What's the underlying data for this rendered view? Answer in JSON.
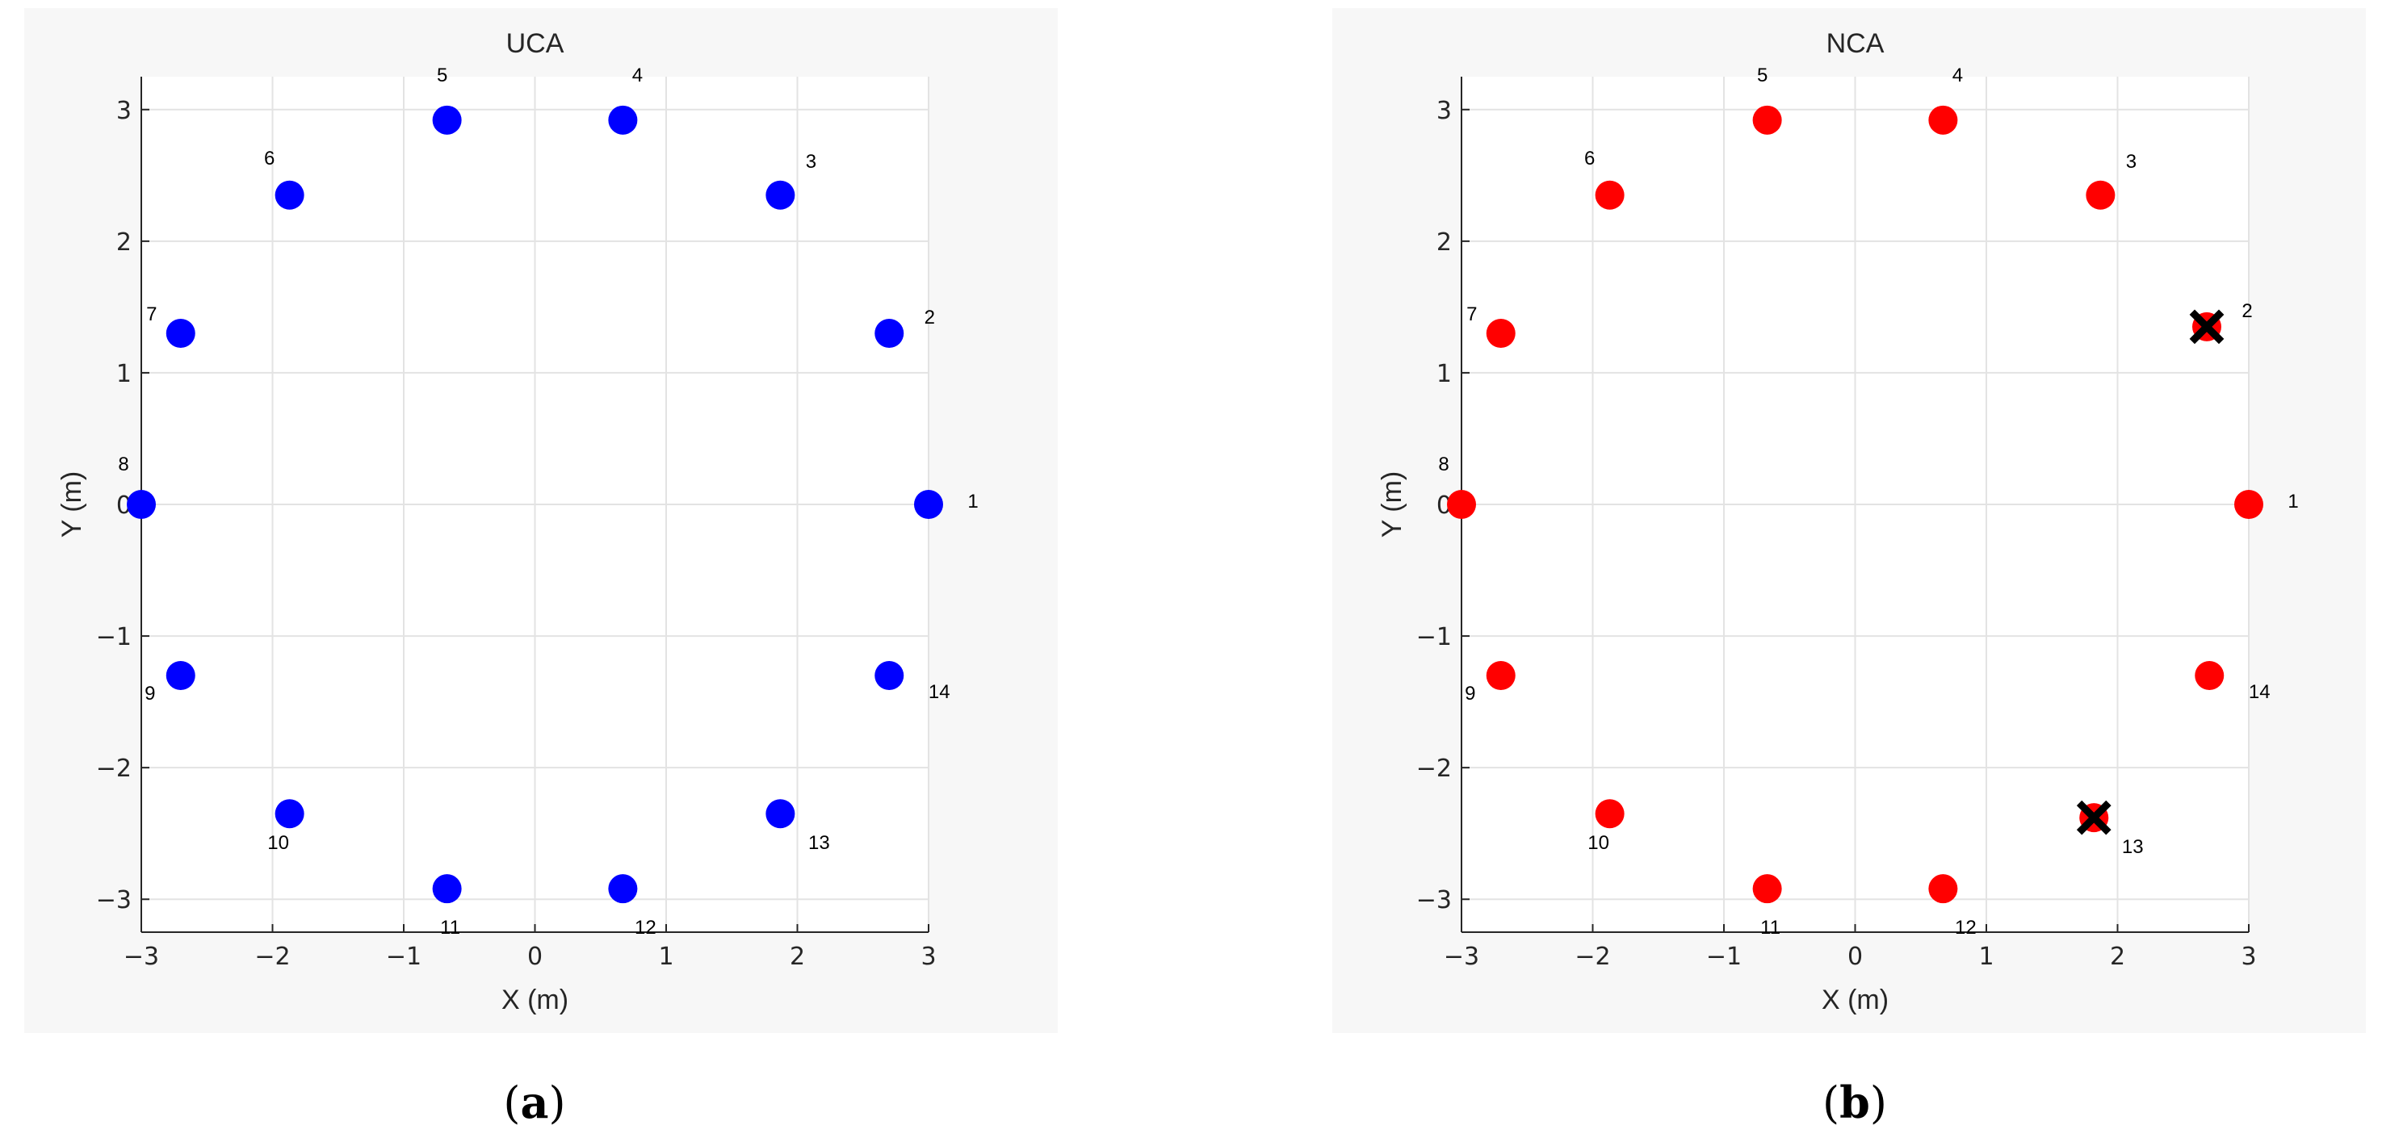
{
  "chart_data": [
    {
      "type": "scatter",
      "title": "UCA",
      "xlabel": "X (m)",
      "ylabel": "Y (m)",
      "xlim": [
        -3,
        3
      ],
      "ylim": [
        -3.25,
        3.25
      ],
      "xticks": [
        -3,
        -2,
        -1,
        0,
        1,
        2,
        3
      ],
      "xtick_labels": [
        "−3",
        "−2",
        "−1",
        "0",
        "1",
        "2",
        "3"
      ],
      "yticks": [
        -3,
        -2,
        -1,
        0,
        1,
        2,
        3
      ],
      "ytick_labels": [
        "−3",
        "−2",
        "−1",
        "0",
        "1",
        "2",
        "3"
      ],
      "grid": true,
      "marker_color": "#0000ff",
      "caption": "a",
      "points": [
        {
          "label": "1",
          "x": 3.0,
          "y": 0.0
        },
        {
          "label": "2",
          "x": 2.7,
          "y": 1.3
        },
        {
          "label": "3",
          "x": 1.87,
          "y": 2.35
        },
        {
          "label": "4",
          "x": 0.67,
          "y": 2.92
        },
        {
          "label": "5",
          "x": -0.67,
          "y": 2.92
        },
        {
          "label": "6",
          "x": -1.87,
          "y": 2.35
        },
        {
          "label": "7",
          "x": -2.7,
          "y": 1.3
        },
        {
          "label": "8",
          "x": -3.0,
          "y": 0.0
        },
        {
          "label": "9",
          "x": -2.7,
          "y": -1.3
        },
        {
          "label": "10",
          "x": -1.87,
          "y": -2.35
        },
        {
          "label": "11",
          "x": -0.67,
          "y": -2.92
        },
        {
          "label": "12",
          "x": 0.67,
          "y": -2.92
        },
        {
          "label": "13",
          "x": 1.87,
          "y": -2.35
        },
        {
          "label": "14",
          "x": 2.7,
          "y": -1.3
        }
      ],
      "failed": []
    },
    {
      "type": "scatter",
      "title": "NCA",
      "xlabel": "X (m)",
      "ylabel": "Y (m)",
      "xlim": [
        -3,
        3
      ],
      "ylim": [
        -3.25,
        3.25
      ],
      "xticks": [
        -3,
        -2,
        -1,
        0,
        1,
        2,
        3
      ],
      "xtick_labels": [
        "−3",
        "−2",
        "−1",
        "0",
        "1",
        "2",
        "3"
      ],
      "yticks": [
        -3,
        -2,
        -1,
        0,
        1,
        2,
        3
      ],
      "ytick_labels": [
        "−3",
        "−2",
        "−1",
        "0",
        "1",
        "2",
        "3"
      ],
      "grid": true,
      "marker_color": "#ff0000",
      "failed_marker_color": "#000000",
      "caption": "b",
      "points": [
        {
          "label": "1",
          "x": 3.0,
          "y": 0.0
        },
        {
          "label": "2",
          "x": 2.68,
          "y": 1.35
        },
        {
          "label": "3",
          "x": 1.87,
          "y": 2.35
        },
        {
          "label": "4",
          "x": 0.67,
          "y": 2.92
        },
        {
          "label": "5",
          "x": -0.67,
          "y": 2.92
        },
        {
          "label": "6",
          "x": -1.87,
          "y": 2.35
        },
        {
          "label": "7",
          "x": -2.7,
          "y": 1.3
        },
        {
          "label": "8",
          "x": -3.0,
          "y": 0.0
        },
        {
          "label": "9",
          "x": -2.7,
          "y": -1.3
        },
        {
          "label": "10",
          "x": -1.87,
          "y": -2.35
        },
        {
          "label": "11",
          "x": -0.67,
          "y": -2.92
        },
        {
          "label": "12",
          "x": 0.67,
          "y": -2.92
        },
        {
          "label": "13",
          "x": 1.82,
          "y": -2.38
        },
        {
          "label": "14",
          "x": 2.7,
          "y": -1.3
        }
      ],
      "failed": [
        "2",
        "13"
      ]
    }
  ]
}
